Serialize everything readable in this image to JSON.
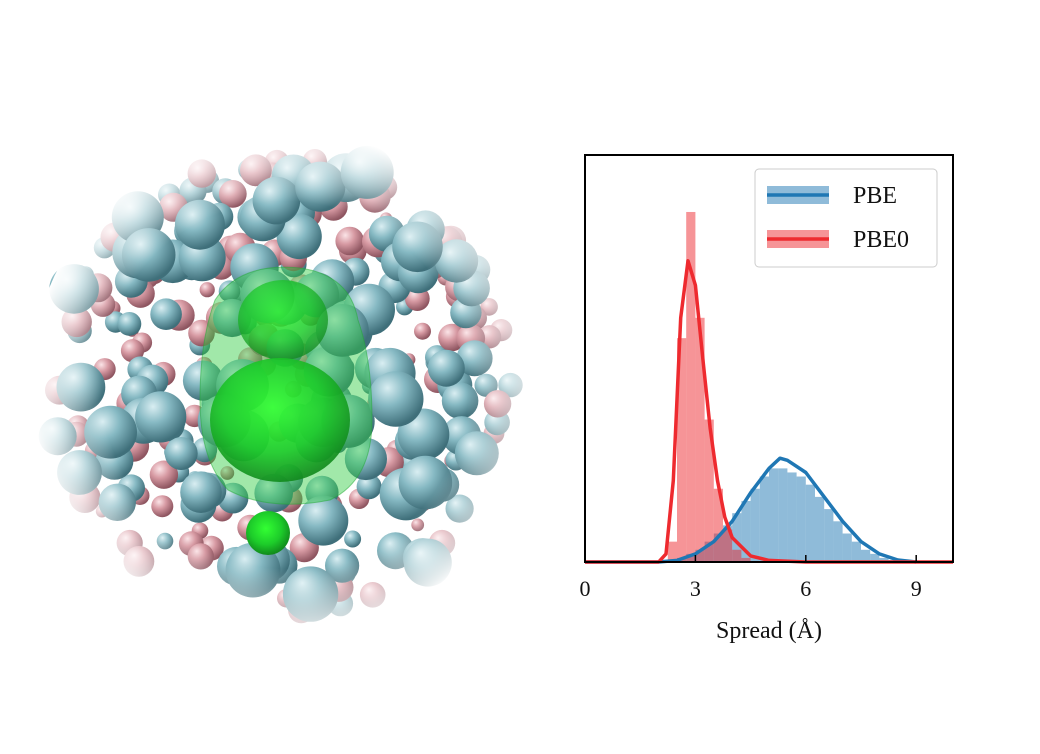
{
  "chart_data": {
    "type": "histogram",
    "xlabel": "Spread (Å)",
    "xlim": [
      0,
      10
    ],
    "ylim": [
      0,
      1
    ],
    "xticks": [
      0,
      3,
      6,
      9
    ],
    "legend": "upper right",
    "bins": [
      2.0,
      2.25,
      2.5,
      2.75,
      3.0,
      3.25,
      3.5,
      3.75,
      4.0,
      4.25,
      4.5,
      4.75,
      5.0,
      5.25,
      5.5,
      5.75,
      6.0,
      6.25,
      6.5,
      6.75,
      7.0,
      7.25,
      7.5,
      7.75,
      8.0,
      8.25,
      8.5,
      8.75,
      9.0
    ],
    "series": [
      {
        "name": "PBE",
        "color": "#1f77b4",
        "values": [
          0,
          0,
          0.01,
          0.02,
          0.03,
          0.05,
          0.07,
          0.09,
          0.12,
          0.15,
          0.18,
          0.21,
          0.23,
          0.23,
          0.22,
          0.21,
          0.19,
          0.16,
          0.13,
          0.1,
          0.07,
          0.05,
          0.03,
          0.02,
          0.01,
          0.005,
          0,
          0
        ],
        "fit": {
          "x": [
            0,
            2,
            2.5,
            3,
            3.5,
            4,
            4.5,
            5,
            5.3,
            5.5,
            6,
            6.5,
            7,
            7.5,
            8,
            8.5,
            9
          ],
          "values": [
            0,
            0,
            0.004,
            0.02,
            0.05,
            0.1,
            0.17,
            0.23,
            0.255,
            0.25,
            0.22,
            0.16,
            0.1,
            0.05,
            0.02,
            0.005,
            0
          ]
        }
      },
      {
        "name": "PBE0",
        "color": "#ee2a2f",
        "values": [
          0,
          0.05,
          0.55,
          0.86,
          0.6,
          0.35,
          0.18,
          0.08,
          0.03,
          0.01,
          0,
          0,
          0,
          0,
          0,
          0,
          0,
          0,
          0,
          0,
          0,
          0,
          0,
          0,
          0,
          0,
          0,
          0
        ],
        "fit": {
          "x": [
            0,
            1,
            2,
            2.2,
            2.4,
            2.6,
            2.8,
            3.0,
            3.2,
            3.4,
            3.6,
            3.8,
            4.0,
            4.5,
            5,
            6,
            7,
            8,
            9,
            10
          ],
          "values": [
            0,
            0,
            0,
            0.02,
            0.2,
            0.6,
            0.74,
            0.68,
            0.5,
            0.33,
            0.2,
            0.11,
            0.06,
            0.015,
            0.004,
            0,
            0,
            0,
            0,
            0
          ]
        }
      }
    ]
  }
}
